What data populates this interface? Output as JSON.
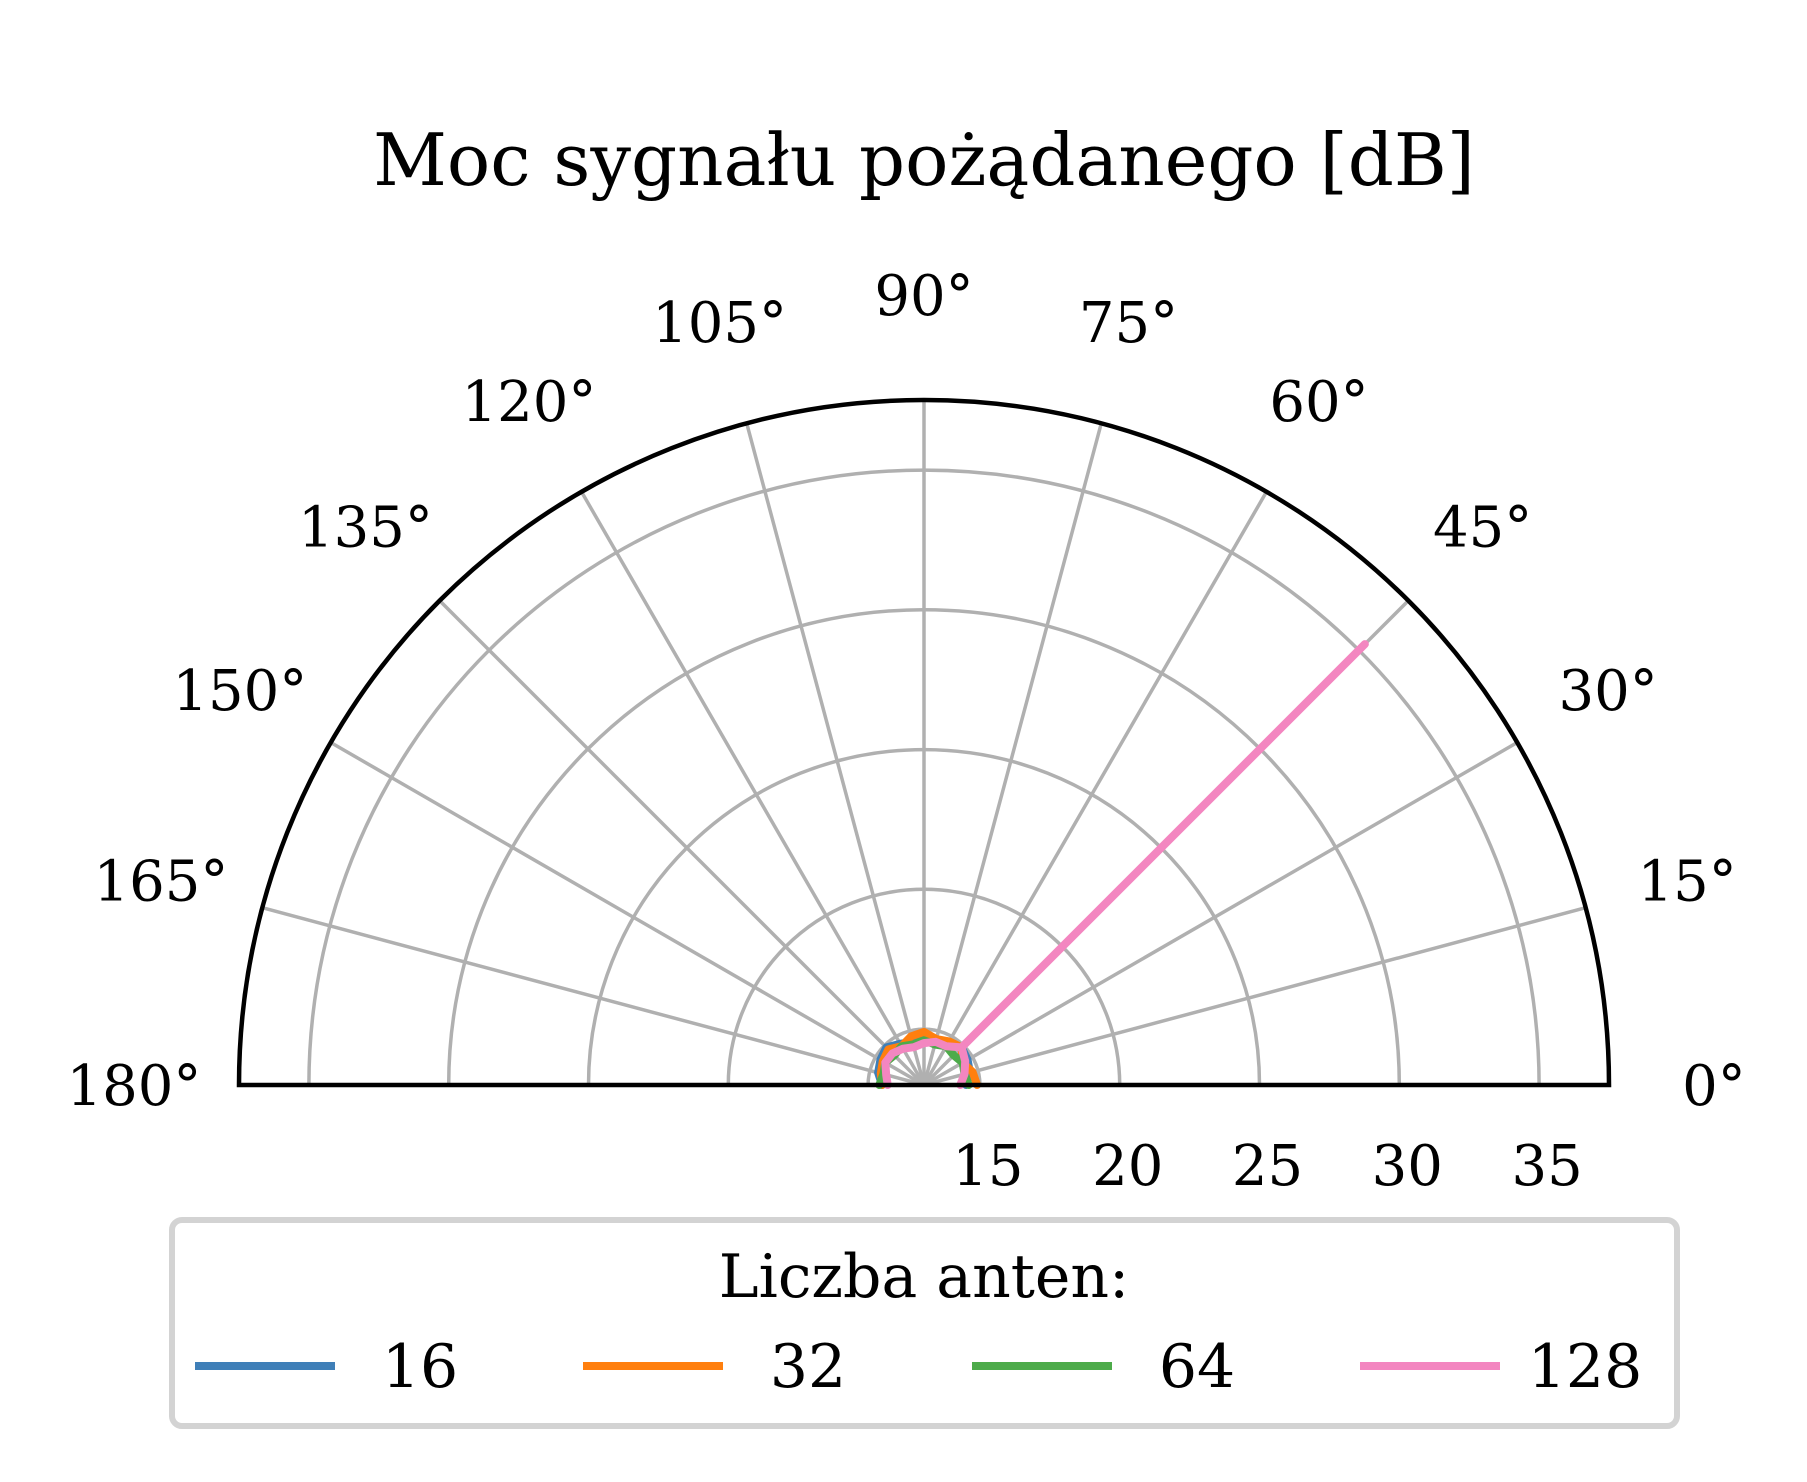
{
  "chart_data": {
    "type": "polar",
    "title": "Moc sygnału pożądanego [dB]",
    "theta_range_deg": [
      0,
      180
    ],
    "theta_ticks": [
      "0°",
      "15°",
      "30°",
      "45°",
      "60°",
      "75°",
      "90°",
      "105°",
      "120°",
      "135°",
      "150°",
      "165°",
      "180°"
    ],
    "r_range": [
      13.0,
      37.5
    ],
    "r_ticks": [
      "15",
      "20",
      "25",
      "30",
      "35"
    ],
    "grid": true,
    "legend": {
      "title": "Liczba anten:",
      "placement": "bottom",
      "entries": [
        "16",
        "32",
        "64",
        "128"
      ]
    },
    "series": [
      {
        "name": "16",
        "color": "#3f7fb8",
        "theta_deg": [
          0,
          15,
          30,
          45,
          60,
          75,
          90,
          105,
          120,
          135,
          150,
          165,
          180
        ],
        "r": [
          14.5,
          14.7,
          14.8,
          14.9,
          14.7,
          14.6,
          14.8,
          14.6,
          14.7,
          14.9,
          14.8,
          14.7,
          14.5
        ]
      },
      {
        "name": "32",
        "color": "#ff7f0e",
        "theta_deg": [
          0,
          15,
          30,
          45,
          60,
          75,
          90,
          105,
          120,
          135,
          150,
          165,
          180
        ],
        "r": [
          14.9,
          14.8,
          14.6,
          14.9,
          14.8,
          14.7,
          14.9,
          14.8,
          14.6,
          14.8,
          14.7,
          14.6,
          14.5
        ]
      },
      {
        "name": "64",
        "color": "#4dab4a",
        "theta_deg": [
          0,
          15,
          30,
          45,
          60,
          75,
          90,
          105,
          120,
          135,
          150,
          165,
          180
        ],
        "r": [
          14.6,
          14.5,
          14.6,
          14.5,
          14.6,
          14.5,
          14.6,
          14.5,
          14.6,
          14.5,
          14.6,
          14.5,
          14.6
        ]
      },
      {
        "name": "128",
        "color": "#f386c0",
        "theta_deg": [
          0,
          15,
          30,
          45,
          45,
          45,
          60,
          75,
          90,
          105,
          120,
          135,
          150,
          165,
          180
        ],
        "r": [
          14.3,
          14.5,
          14.7,
          14.9,
          35.3,
          14.9,
          14.6,
          14.6,
          14.5,
          14.4,
          14.5,
          14.6,
          14.6,
          14.4,
          14.3
        ]
      }
    ]
  }
}
